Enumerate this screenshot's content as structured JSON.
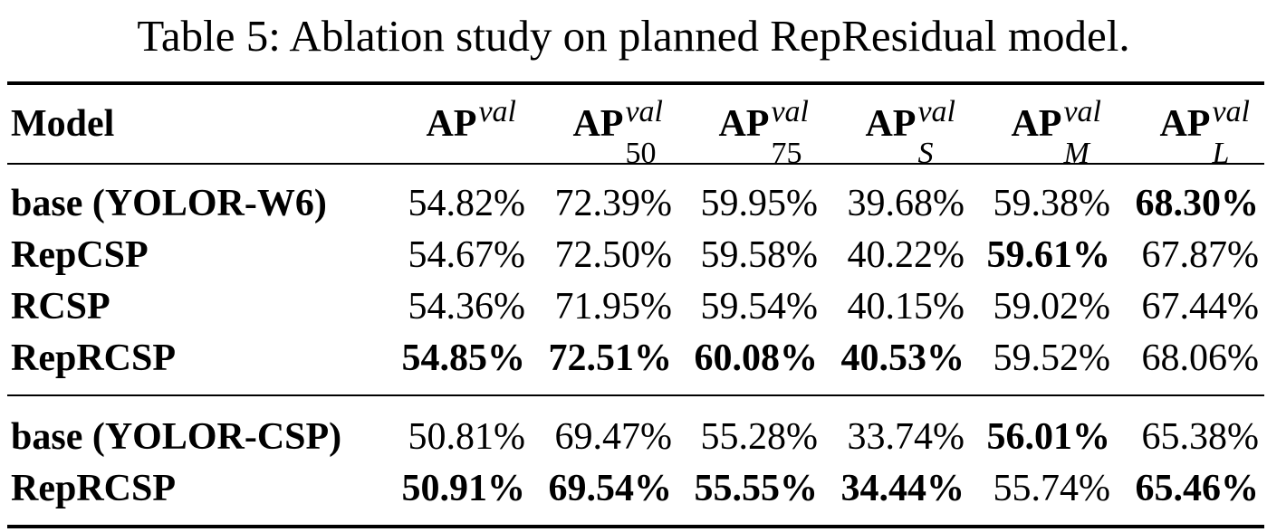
{
  "caption": "Table 5: Ablation study on planned RepResidual model.",
  "header": {
    "model": "Model",
    "cols": [
      {
        "base": "AP",
        "sup": "val",
        "sub": ""
      },
      {
        "base": "AP",
        "sup": "val",
        "sub": "50"
      },
      {
        "base": "AP",
        "sup": "val",
        "sub": "75"
      },
      {
        "base": "AP",
        "sup": "val",
        "sub": "S"
      },
      {
        "base": "AP",
        "sup": "val",
        "sub": "M"
      },
      {
        "base": "AP",
        "sup": "val",
        "sub": "L"
      }
    ]
  },
  "groups": [
    {
      "rows": [
        {
          "model": "base (YOLOR-W6)",
          "values": [
            "54.82%",
            "72.39%",
            "59.95%",
            "39.68%",
            "59.38%",
            "68.30%"
          ],
          "bold": [
            false,
            false,
            false,
            false,
            false,
            true
          ]
        },
        {
          "model": "RepCSP",
          "values": [
            "54.67%",
            "72.50%",
            "59.58%",
            "40.22%",
            "59.61%",
            "67.87%"
          ],
          "bold": [
            false,
            false,
            false,
            false,
            true,
            false
          ]
        },
        {
          "model": "RCSP",
          "values": [
            "54.36%",
            "71.95%",
            "59.54%",
            "40.15%",
            "59.02%",
            "67.44%"
          ],
          "bold": [
            false,
            false,
            false,
            false,
            false,
            false
          ]
        },
        {
          "model": "RepRCSP",
          "values": [
            "54.85%",
            "72.51%",
            "60.08%",
            "40.53%",
            "59.52%",
            "68.06%"
          ],
          "bold": [
            true,
            true,
            true,
            true,
            false,
            false
          ]
        }
      ]
    },
    {
      "rows": [
        {
          "model": "base (YOLOR-CSP)",
          "values": [
            "50.81%",
            "69.47%",
            "55.28%",
            "33.74%",
            "56.01%",
            "65.38%"
          ],
          "bold": [
            false,
            false,
            false,
            false,
            true,
            false
          ]
        },
        {
          "model": "RepRCSP",
          "values": [
            "50.91%",
            "69.54%",
            "55.55%",
            "34.44%",
            "55.74%",
            "65.46%"
          ],
          "bold": [
            true,
            true,
            true,
            true,
            false,
            true
          ]
        }
      ]
    }
  ]
}
